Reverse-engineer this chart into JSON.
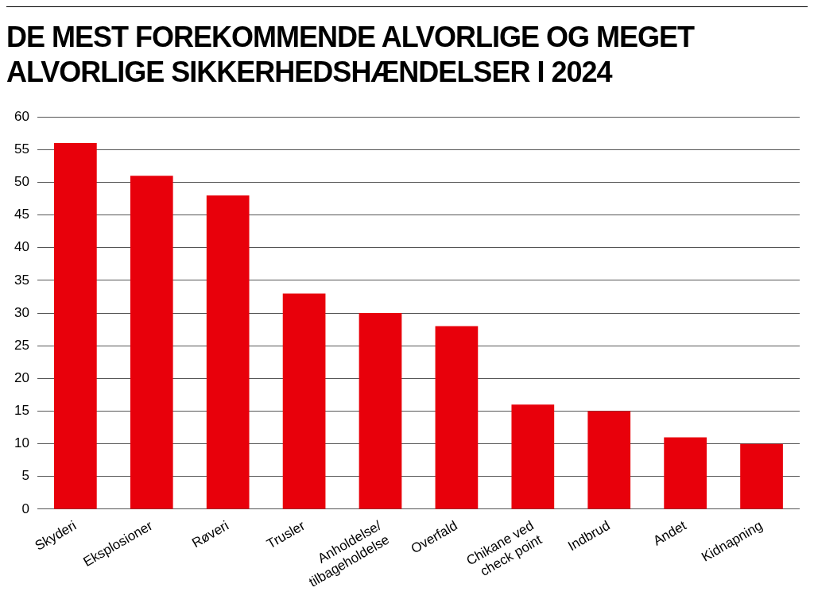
{
  "chart_data": {
    "type": "bar",
    "title": "DE MEST FOREKOMMENDE ALVORLIGE OG MEGET ALVORLIGE SIKKERHEDSHÆNDELSER I 2024",
    "categories": [
      "Skyderi",
      "Eksplosioner",
      "Røveri",
      "Trusler",
      "Anholdelse/\ntilbageholdelse",
      "Overfald",
      "Chikane ved\ncheck point",
      "Indbrud",
      "Andet",
      "Kidnapning"
    ],
    "values": [
      56,
      51,
      48,
      33,
      30,
      28,
      16,
      15,
      11,
      10
    ],
    "color": "#e8000b",
    "ylim": [
      0,
      60
    ],
    "yticks": [
      0,
      5,
      10,
      15,
      20,
      25,
      30,
      35,
      40,
      45,
      50,
      55,
      60
    ],
    "grid": "y",
    "legend": false
  }
}
